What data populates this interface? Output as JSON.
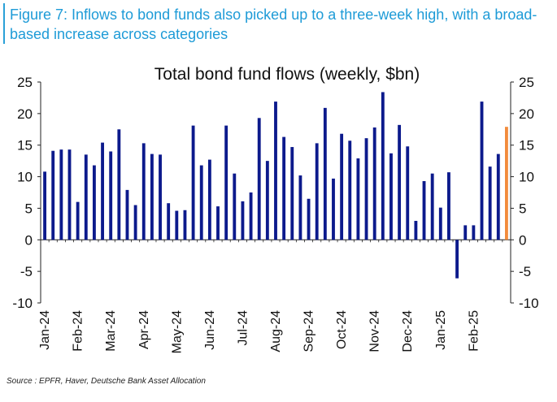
{
  "figure": {
    "title": "Figure 7: Inflows to bond funds also picked up to a three-week high, with a broad-based increase across categories",
    "source": "Source : EPFR, Haver, Deutsche Bank Asset Allocation"
  },
  "colors": {
    "bar": "#0c1a8c",
    "highlight": "#f28b3c",
    "title": "#1e9bd7",
    "axis": "#222222"
  },
  "chart_data": {
    "type": "bar",
    "title": "Total bond fund flows (weekly, $bn)",
    "xlabel": "",
    "ylabel": "",
    "ylim": [
      -10,
      25
    ],
    "yticks": [
      25,
      20,
      15,
      10,
      5,
      0,
      -5,
      -10
    ],
    "secondary_axis": true,
    "grid": false,
    "highlight_last": true,
    "month_labels": [
      {
        "label": "Jan-24",
        "index": 0
      },
      {
        "label": "Feb-24",
        "index": 4
      },
      {
        "label": "Mar-24",
        "index": 8
      },
      {
        "label": "Apr-24",
        "index": 12
      },
      {
        "label": "May-24",
        "index": 16
      },
      {
        "label": "Jun-24",
        "index": 20
      },
      {
        "label": "Jul-24",
        "index": 24
      },
      {
        "label": "Aug-24",
        "index": 28
      },
      {
        "label": "Sep-24",
        "index": 32
      },
      {
        "label": "Oct-24",
        "index": 36
      },
      {
        "label": "Nov-24",
        "index": 40
      },
      {
        "label": "Dec-24",
        "index": 44
      },
      {
        "label": "Jan-25",
        "index": 48
      },
      {
        "label": "Feb-25",
        "index": 52
      }
    ],
    "values": [
      10.8,
      14.1,
      14.3,
      14.3,
      6.0,
      13.5,
      11.8,
      15.4,
      14.0,
      17.5,
      7.9,
      5.5,
      15.3,
      13.6,
      13.5,
      5.8,
      4.6,
      4.7,
      18.1,
      11.8,
      12.7,
      5.3,
      18.1,
      10.5,
      6.1,
      7.5,
      19.3,
      12.5,
      21.9,
      16.3,
      14.7,
      10.2,
      6.5,
      15.3,
      20.9,
      9.7,
      16.8,
      15.7,
      12.9,
      16.1,
      17.8,
      23.4,
      13.7,
      18.2,
      14.8,
      3.0,
      9.3,
      10.5,
      5.1,
      10.7,
      -6.1,
      2.3,
      2.3,
      21.9,
      11.6,
      13.6,
      17.9
    ]
  }
}
